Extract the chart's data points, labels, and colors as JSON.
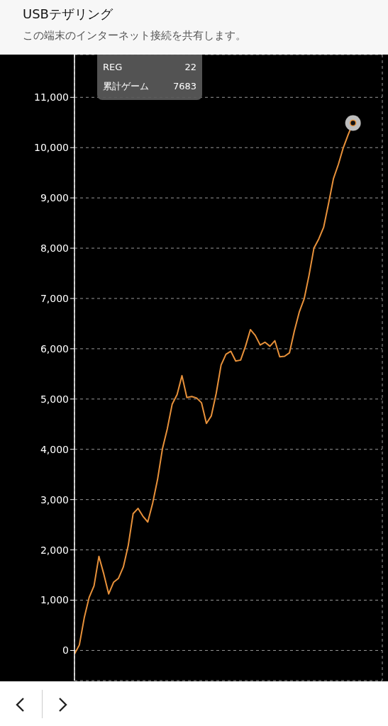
{
  "chart_data": {
    "type": "line",
    "title": "USBテザリング",
    "subtitle": "この端末のインターネット接続を共有します。",
    "annotations": [
      "REG",
      "22",
      "累計ゲーム",
      "7683"
    ],
    "categories": [
      null,
      null,
      null,
      null,
      null,
      null,
      null,
      null,
      null,
      null,
      null,
      null,
      null,
      null,
      null,
      null,
      null,
      null,
      null,
      null,
      null,
      null,
      null,
      null,
      null,
      null,
      null,
      null,
      null,
      null,
      null,
      null,
      null,
      null,
      null,
      null,
      null,
      null,
      null,
      null,
      null,
      null,
      null,
      null,
      null,
      null,
      null,
      null,
      null,
      null,
      null,
      null,
      null,
      null,
      null,
      null,
      null,
      null,
      null,
      null,
      null,
      null,
      null,
      null
    ],
    "series": [
      {
        "color": "#e8913a",
        "values": [
          -70,
          110,
          650,
          1055,
          1285,
          1870,
          1520,
          1125,
          1355,
          1435,
          1660,
          2085,
          2720,
          2825,
          2670,
          2555,
          2930,
          3400,
          4010,
          4410,
          4900,
          5090,
          5465,
          5030,
          5050,
          5020,
          4925,
          4515,
          4665,
          5110,
          5675,
          5890,
          5950,
          5755,
          5775,
          6050,
          6380,
          6265,
          6075,
          6130,
          6050,
          6160,
          5840,
          5850,
          5920,
          6355,
          6730,
          6990,
          7460,
          8000,
          8185,
          8420,
          8890,
          9385,
          9665,
          9995,
          10255,
          10490,
          null,
          null,
          null,
          null,
          null,
          null
        ]
      }
    ],
    "ylim": [
      -600,
      11850
    ],
    "yticks": [
      {
        "value": 0,
        "label": "0"
      },
      {
        "value": 1000,
        "label": "1,000"
      },
      {
        "value": 2000,
        "label": "2,000"
      },
      {
        "value": 3000,
        "label": "3,000"
      },
      {
        "value": 4000,
        "label": "4,000"
      },
      {
        "value": 5000,
        "label": "5,000"
      },
      {
        "value": 6000,
        "label": "6,000"
      },
      {
        "value": 7000,
        "label": "7,000"
      },
      {
        "value": 8000,
        "label": "8,000"
      },
      {
        "value": 9000,
        "label": "9,000"
      },
      {
        "value": 10000,
        "label": "10,000"
      },
      {
        "value": 11000,
        "label": "11,000"
      }
    ],
    "grid": true,
    "marker": "none",
    "line_style": "solid"
  }
}
